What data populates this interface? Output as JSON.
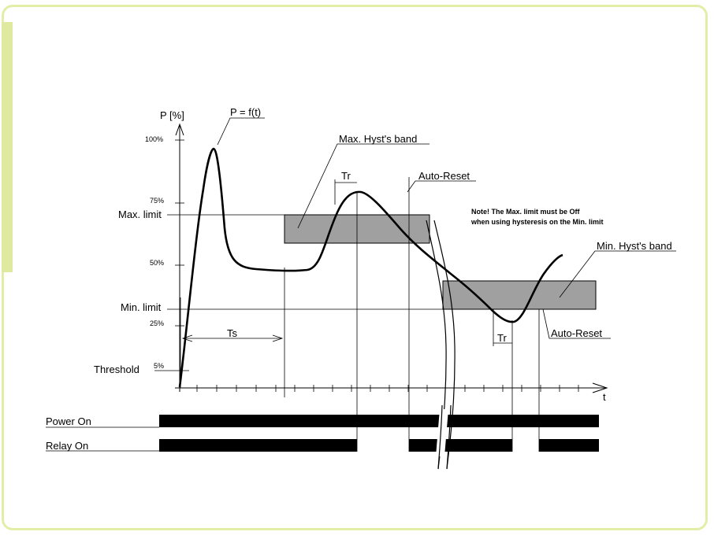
{
  "axis": {
    "y_label": "P [%]",
    "x_label": "t",
    "curve_label": "P = f(t)"
  },
  "levels": {
    "pct_100": "100%",
    "pct_75": "75%",
    "pct_50": "50%",
    "pct_25": "25%",
    "pct_5": "5%",
    "max_limit": "Max. limit",
    "min_limit": "Min. limit",
    "threshold": "Threshold"
  },
  "bands": {
    "max_hyst": "Max. Hyst's band",
    "min_hyst": "Min. Hyst's band",
    "band_color": "#a0a0a0"
  },
  "timing": {
    "ts": "Ts",
    "tr_top": "Tr",
    "tr_bottom": "Tr",
    "auto_reset_top": "Auto-Reset",
    "auto_reset_bottom": "Auto-Reset"
  },
  "note": {
    "line1": "Note! The Max. limit must be Off",
    "line2": "when using hysteresis on the Min. limit"
  },
  "signals": {
    "power_on": "Power On",
    "relay_on": "Relay On"
  },
  "colors": {
    "frame": "#e3eda8",
    "accent": "#dfeaa0",
    "ink": "#000000"
  }
}
